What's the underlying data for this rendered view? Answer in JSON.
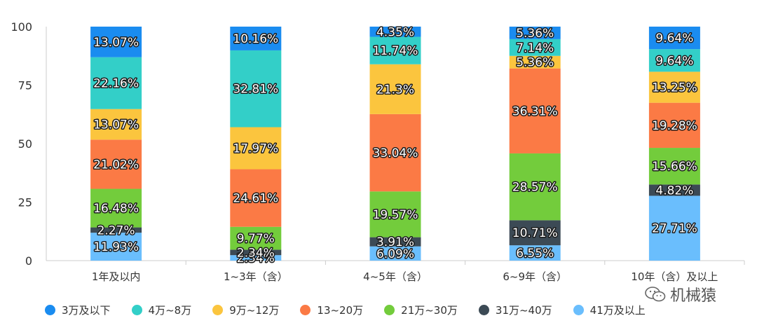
{
  "chart_data": {
    "type": "stacked-bar",
    "categories": [
      "1年及以内",
      "1~3年（含）",
      "4~5年（含）",
      "6~9年（含）",
      "10年（含）及以上"
    ],
    "ylim": [
      0,
      100
    ],
    "yticks": [
      0,
      25,
      50,
      75,
      100
    ],
    "series": [
      {
        "name": "3万及以下",
        "color": "#1a8cf0",
        "values": [
          13.07,
          10.16,
          4.35,
          5.36,
          9.64
        ]
      },
      {
        "name": "4万~8万",
        "color": "#33cfc8",
        "values": [
          22.16,
          32.81,
          11.74,
          7.14,
          9.64
        ]
      },
      {
        "name": "9万~12万",
        "color": "#fbc53e",
        "values": [
          13.07,
          17.97,
          21.3,
          5.36,
          13.25
        ]
      },
      {
        "name": "13~20万",
        "color": "#fb7a45",
        "values": [
          21.02,
          24.61,
          33.04,
          36.31,
          19.28
        ]
      },
      {
        "name": "21万~30万",
        "color": "#73cc3c",
        "values": [
          16.48,
          9.77,
          19.57,
          28.57,
          15.66
        ]
      },
      {
        "name": "31万~40万",
        "color": "#3c4a55",
        "values": [
          2.27,
          2.34,
          3.91,
          10.71,
          4.82
        ]
      },
      {
        "name": "41万及以上",
        "color": "#6abefd",
        "values": [
          11.93,
          2.34,
          6.09,
          6.55,
          27.71
        ]
      }
    ],
    "labels": [
      [
        "13.07%",
        "10.16%",
        "4.35%",
        "5.36%",
        "9.64%"
      ],
      [
        "22.16%",
        "32.81%",
        "11.74%",
        "7.14%",
        "9.64%"
      ],
      [
        "13.07%",
        "17.97%",
        "21.3%",
        "5.36%",
        "13.25%"
      ],
      [
        "21.02%",
        "24.61%",
        "33.04%",
        "36.31%",
        "19.28%"
      ],
      [
        "16.48%",
        "9.77%",
        "19.57%",
        "28.57%",
        "15.66%"
      ],
      [
        "2.27%",
        "2.34%",
        "3.91%",
        "10.71%",
        "4.82%"
      ],
      [
        "11.93%",
        "2.34%",
        "6.09%",
        "6.55%",
        "27.71%"
      ]
    ]
  },
  "watermark": {
    "text": "机械猿",
    "icon": "wechat-icon"
  }
}
